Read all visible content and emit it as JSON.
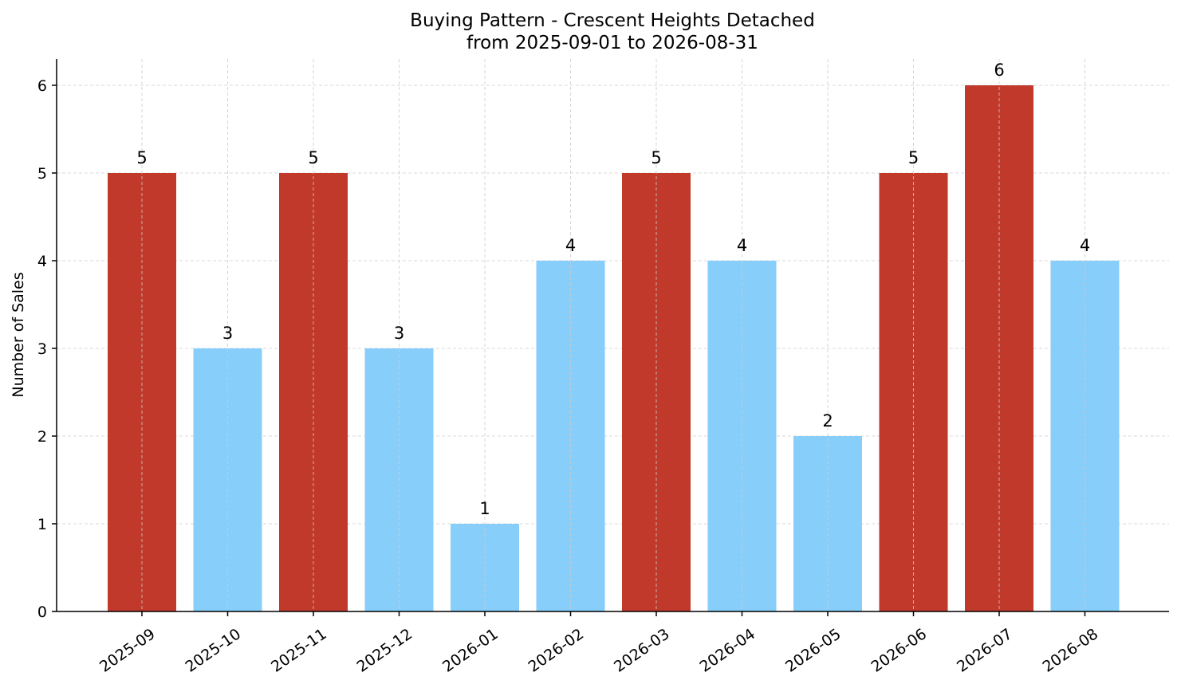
{
  "chart_data": {
    "type": "bar",
    "title": "Buying Pattern - Crescent Heights Detached",
    "subtitle": "from 2025-09-01 to 2026-08-31",
    "xlabel": "",
    "ylabel": "Number of Sales",
    "categories": [
      "2025-09",
      "2025-10",
      "2025-11",
      "2025-12",
      "2026-01",
      "2026-02",
      "2026-03",
      "2026-04",
      "2026-05",
      "2026-06",
      "2026-07",
      "2026-08"
    ],
    "values": [
      5,
      3,
      5,
      3,
      1,
      4,
      5,
      4,
      2,
      5,
      6,
      4
    ],
    "bar_highlight": [
      true,
      false,
      true,
      false,
      false,
      false,
      true,
      false,
      false,
      true,
      true,
      false
    ],
    "colors": {
      "highlight": "#c0392b",
      "normal": "#87cefa"
    },
    "ylim": [
      0,
      6.3
    ],
    "yticks": [
      0,
      1,
      2,
      3,
      4,
      5,
      6
    ],
    "grid": true,
    "legend": "none"
  }
}
